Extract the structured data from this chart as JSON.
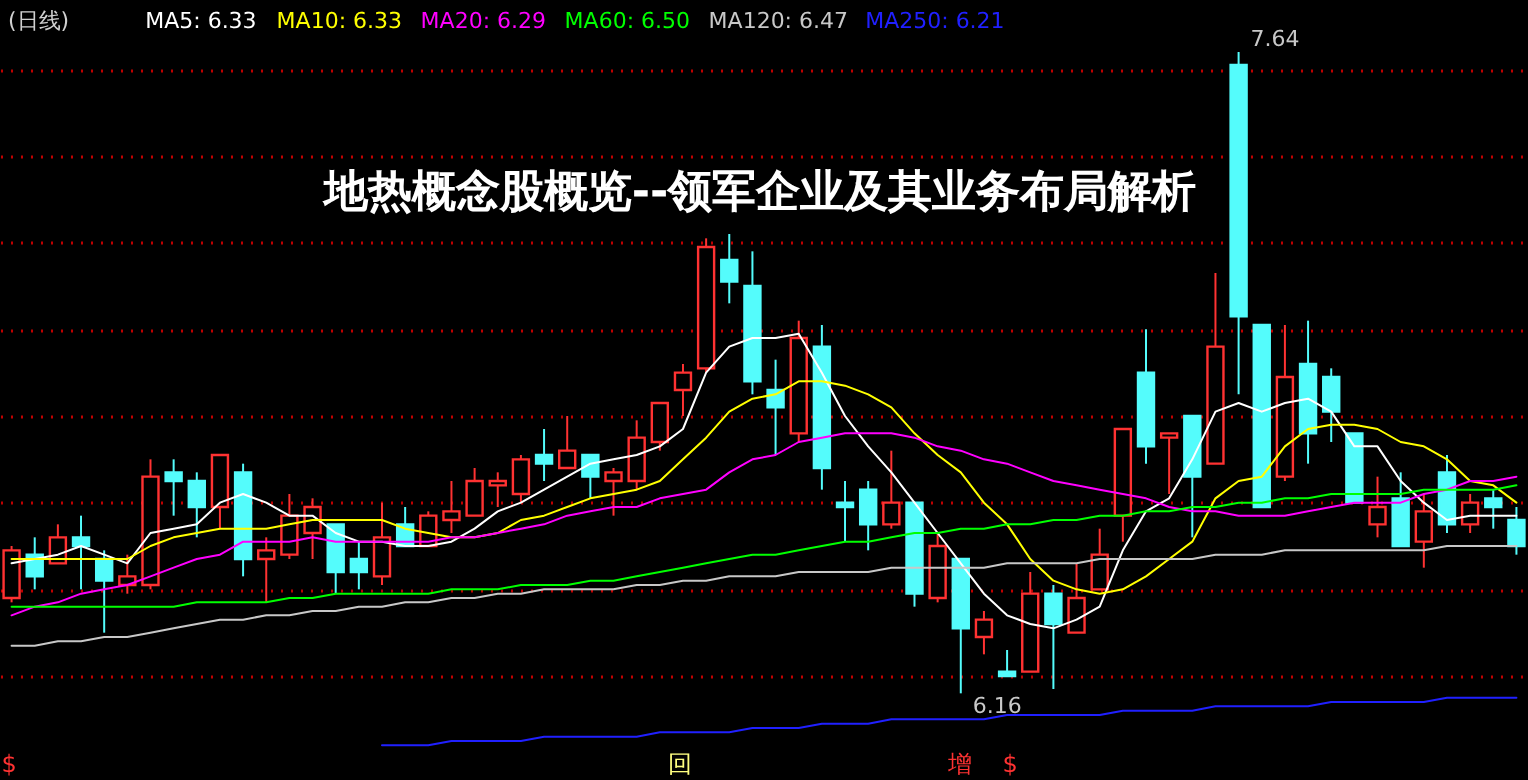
{
  "chart_data": {
    "type": "candlestick",
    "title": "地热概念股概览--领军企业及其业务布局解析",
    "subtitle": "(日线)",
    "categories": [
      null,
      null,
      null,
      null,
      null,
      null,
      null,
      null,
      null,
      null,
      null,
      null,
      null,
      null,
      null,
      null,
      null,
      null,
      null,
      null,
      null,
      null,
      null,
      null,
      null,
      null,
      null,
      null,
      null,
      null,
      null,
      null,
      null,
      null,
      null,
      null,
      null,
      null,
      null,
      null,
      null,
      null,
      null,
      null,
      null,
      null,
      null,
      null,
      null,
      null,
      null,
      null,
      null,
      null,
      null,
      null,
      null,
      null,
      null,
      null,
      null,
      null,
      null,
      null,
      null,
      null
    ],
    "ohlc": [
      [
        6.38,
        6.5,
        6.37,
        6.49
      ],
      [
        6.48,
        6.52,
        6.4,
        6.43
      ],
      [
        6.46,
        6.55,
        6.46,
        6.52
      ],
      [
        6.52,
        6.57,
        6.4,
        6.5
      ],
      [
        6.47,
        6.49,
        6.3,
        6.42
      ],
      [
        6.41,
        6.48,
        6.39,
        6.43
      ],
      [
        6.41,
        6.7,
        6.4,
        6.66
      ],
      [
        6.67,
        6.7,
        6.57,
        6.65
      ],
      [
        6.65,
        6.67,
        6.52,
        6.59
      ],
      [
        6.59,
        6.71,
        6.54,
        6.71
      ],
      [
        6.67,
        6.69,
        6.43,
        6.47
      ],
      [
        6.47,
        6.52,
        6.37,
        6.49
      ],
      [
        6.48,
        6.62,
        6.47,
        6.57
      ],
      [
        6.53,
        6.61,
        6.47,
        6.59
      ],
      [
        6.55,
        6.55,
        6.39,
        6.44
      ],
      [
        6.47,
        6.51,
        6.4,
        6.44
      ],
      [
        6.43,
        6.6,
        6.41,
        6.52
      ],
      [
        6.55,
        6.59,
        6.5,
        6.5
      ],
      [
        6.5,
        6.58,
        6.5,
        6.57
      ],
      [
        6.56,
        6.65,
        6.53,
        6.58
      ],
      [
        6.57,
        6.68,
        6.57,
        6.65
      ],
      [
        6.64,
        6.67,
        6.59,
        6.65
      ],
      [
        6.62,
        6.71,
        6.6,
        6.7
      ],
      [
        6.71,
        6.77,
        6.65,
        6.69
      ],
      [
        6.68,
        6.8,
        6.68,
        6.72
      ],
      [
        6.71,
        6.71,
        6.61,
        6.66
      ],
      [
        6.65,
        6.68,
        6.57,
        6.67
      ],
      [
        6.65,
        6.79,
        6.63,
        6.75
      ],
      [
        6.74,
        6.83,
        6.72,
        6.83
      ],
      [
        6.86,
        6.92,
        6.8,
        6.9
      ],
      [
        6.91,
        7.21,
        6.9,
        7.19
      ],
      [
        7.16,
        7.22,
        7.06,
        7.11
      ],
      [
        7.1,
        7.18,
        6.85,
        6.88
      ],
      [
        6.86,
        6.93,
        6.71,
        6.82
      ],
      [
        6.76,
        7.02,
        6.74,
        6.98
      ],
      [
        6.96,
        7.01,
        6.63,
        6.68
      ],
      [
        6.6,
        6.65,
        6.51,
        6.59
      ],
      [
        6.63,
        6.65,
        6.49,
        6.55
      ],
      [
        6.55,
        6.72,
        6.54,
        6.6
      ],
      [
        6.6,
        6.6,
        6.36,
        6.39
      ],
      [
        6.38,
        6.53,
        6.37,
        6.5
      ],
      [
        6.47,
        6.47,
        6.16,
        6.31
      ],
      [
        6.29,
        6.35,
        6.25,
        6.33
      ],
      [
        6.21,
        6.26,
        6.2,
        6.2
      ],
      [
        6.21,
        6.44,
        6.21,
        6.39
      ],
      [
        6.39,
        6.41,
        6.17,
        6.32
      ],
      [
        6.3,
        6.46,
        6.3,
        6.38
      ],
      [
        6.4,
        6.54,
        6.4,
        6.48
      ],
      [
        6.57,
        6.77,
        6.51,
        6.77
      ],
      [
        6.9,
        7.0,
        6.69,
        6.73
      ],
      [
        6.75,
        6.76,
        6.62,
        6.76
      ],
      [
        6.8,
        6.8,
        6.52,
        6.66
      ],
      [
        6.69,
        7.13,
        6.69,
        6.96
      ],
      [
        7.61,
        7.64,
        6.85,
        7.03
      ],
      [
        7.01,
        7.01,
        6.59,
        6.59
      ],
      [
        6.66,
        7.01,
        6.65,
        6.89
      ],
      [
        6.92,
        7.02,
        6.69,
        6.76
      ],
      [
        6.89,
        6.91,
        6.74,
        6.81
      ],
      [
        6.76,
        6.76,
        6.6,
        6.6
      ],
      [
        6.55,
        6.66,
        6.52,
        6.59
      ],
      [
        6.61,
        6.67,
        6.5,
        6.5
      ],
      [
        6.51,
        6.62,
        6.45,
        6.58
      ],
      [
        6.67,
        6.71,
        6.53,
        6.55
      ],
      [
        6.55,
        6.62,
        6.53,
        6.6
      ],
      [
        6.61,
        6.63,
        6.54,
        6.59
      ],
      [
        6.56,
        6.59,
        6.48,
        6.5
      ]
    ],
    "colors": [
      "#ff3232",
      "#54fcfc",
      "#ff3232",
      "#54fcfc",
      "#54fcfc",
      "#ff3232",
      "#ff3232",
      "#54fcfc",
      "#54fcfc",
      "#ff3232",
      "#54fcfc",
      "#ff3232",
      "#ff3232",
      "#ff3232",
      "#54fcfc",
      "#54fcfc",
      "#ff3232",
      "#54fcfc",
      "#ff3232",
      "#ff3232",
      "#ff3232",
      "#ff3232",
      "#ff3232",
      "#54fcfc",
      "#ff3232",
      "#54fcfc",
      "#ff3232",
      "#ff3232",
      "#ff3232",
      "#ff3232",
      "#ff3232",
      "#54fcfc",
      "#54fcfc",
      "#54fcfc",
      "#ff3232",
      "#54fcfc",
      "#54fcfc",
      "#54fcfc",
      "#ff3232",
      "#54fcfc",
      "#ff3232",
      "#54fcfc",
      "#ff3232",
      "#54fcfc",
      "#ff3232",
      "#54fcfc",
      "#ff3232",
      "#ff3232",
      "#ff3232",
      "#54fcfc",
      "#ff3232",
      "#54fcfc",
      "#ff3232",
      "#54fcfc",
      "#54fcfc",
      "#ff3232",
      "#54fcfc",
      "#54fcfc",
      "#54fcfc",
      "#ff3232",
      "#54fcfc",
      "#ff3232",
      "#54fcfc",
      "#ff3232",
      "#54fcfc",
      "#54fcfc"
    ],
    "series": [
      {
        "name": "MA5: 6.33",
        "type": "line",
        "color": "#ffffff",
        "values": [
          6.46,
          6.47,
          6.48,
          6.5,
          6.48,
          6.46,
          6.53,
          6.54,
          6.55,
          6.6,
          6.62,
          6.6,
          6.57,
          6.57,
          6.53,
          6.51,
          6.51,
          6.5,
          6.5,
          6.51,
          6.54,
          6.58,
          6.6,
          6.63,
          6.66,
          6.69,
          6.7,
          6.71,
          6.73,
          6.77,
          6.9,
          6.96,
          6.98,
          6.98,
          6.99,
          6.9,
          6.8,
          6.73,
          6.67,
          6.6,
          6.53,
          6.46,
          6.39,
          6.34,
          6.32,
          6.31,
          6.33,
          6.36,
          6.49,
          6.58,
          6.61,
          6.7,
          6.81,
          6.83,
          6.81,
          6.83,
          6.84,
          6.81,
          6.73,
          6.73,
          6.65,
          6.6,
          6.56,
          6.57,
          6.57,
          6.57
        ]
      },
      {
        "name": "MA10: 6.33",
        "type": "line",
        "color": "#ffff00",
        "values": [
          6.47,
          6.47,
          6.47,
          6.47,
          6.47,
          6.47,
          6.5,
          6.52,
          6.53,
          6.54,
          6.54,
          6.54,
          6.55,
          6.56,
          6.56,
          6.56,
          6.56,
          6.54,
          6.53,
          6.52,
          6.52,
          6.53,
          6.56,
          6.57,
          6.59,
          6.61,
          6.62,
          6.63,
          6.65,
          6.7,
          6.75,
          6.81,
          6.84,
          6.85,
          6.88,
          6.88,
          6.87,
          6.85,
          6.82,
          6.76,
          6.71,
          6.67,
          6.6,
          6.55,
          6.47,
          6.42,
          6.4,
          6.39,
          6.4,
          6.43,
          6.47,
          6.51,
          6.61,
          6.65,
          6.66,
          6.73,
          6.77,
          6.78,
          6.78,
          6.77,
          6.74,
          6.73,
          6.7,
          6.65,
          6.64,
          6.6
        ]
      },
      {
        "name": "MA20: 6.29",
        "type": "line",
        "color": "#ff00ff",
        "values": [
          6.34,
          6.36,
          6.37,
          6.39,
          6.4,
          6.41,
          6.43,
          6.45,
          6.47,
          6.48,
          6.51,
          6.51,
          6.51,
          6.52,
          6.51,
          6.51,
          6.51,
          6.51,
          6.51,
          6.52,
          6.52,
          6.53,
          6.54,
          6.55,
          6.57,
          6.58,
          6.59,
          6.59,
          6.61,
          6.62,
          6.63,
          6.67,
          6.7,
          6.71,
          6.74,
          6.75,
          6.76,
          6.76,
          6.76,
          6.75,
          6.73,
          6.72,
          6.7,
          6.69,
          6.67,
          6.65,
          6.64,
          6.63,
          6.62,
          6.61,
          6.59,
          6.58,
          6.58,
          6.57,
          6.57,
          6.57,
          6.58,
          6.59,
          6.6,
          6.6,
          6.6,
          6.62,
          6.63,
          6.65,
          6.65,
          6.66
        ]
      },
      {
        "name": "MA60: 6.50",
        "type": "line",
        "color": "#00ff00",
        "values": [
          6.36,
          6.36,
          6.36,
          6.36,
          6.36,
          6.36,
          6.36,
          6.36,
          6.37,
          6.37,
          6.37,
          6.37,
          6.38,
          6.38,
          6.39,
          6.39,
          6.39,
          6.39,
          6.39,
          6.4,
          6.4,
          6.4,
          6.41,
          6.41,
          6.41,
          6.42,
          6.42,
          6.43,
          6.44,
          6.45,
          6.46,
          6.47,
          6.48,
          6.48,
          6.49,
          6.5,
          6.51,
          6.51,
          6.52,
          6.53,
          6.53,
          6.54,
          6.54,
          6.55,
          6.55,
          6.56,
          6.56,
          6.57,
          6.57,
          6.58,
          6.58,
          6.59,
          6.59,
          6.6,
          6.6,
          6.61,
          6.61,
          6.62,
          6.62,
          6.62,
          6.62,
          6.63,
          6.63,
          6.63,
          6.63,
          6.64
        ]
      },
      {
        "name": "MA120: 6.47",
        "type": "line",
        "color": "#c8c8c8",
        "values": [
          6.27,
          6.27,
          6.28,
          6.28,
          6.29,
          6.29,
          6.3,
          6.31,
          6.32,
          6.33,
          6.33,
          6.34,
          6.34,
          6.35,
          6.35,
          6.36,
          6.36,
          6.37,
          6.37,
          6.38,
          6.38,
          6.39,
          6.39,
          6.4,
          6.4,
          6.4,
          6.4,
          6.41,
          6.41,
          6.42,
          6.42,
          6.43,
          6.43,
          6.43,
          6.44,
          6.44,
          6.44,
          6.44,
          6.45,
          6.45,
          6.45,
          6.45,
          6.45,
          6.46,
          6.46,
          6.46,
          6.46,
          6.47,
          6.47,
          6.47,
          6.47,
          6.47,
          6.48,
          6.48,
          6.48,
          6.49,
          6.49,
          6.49,
          6.49,
          6.49,
          6.49,
          6.49,
          6.5,
          6.5,
          6.5,
          6.5
        ]
      },
      {
        "name": "MA250: 6.21",
        "type": "line",
        "color": "#2020ff",
        "values": [
          null,
          null,
          null,
          null,
          null,
          null,
          null,
          null,
          null,
          null,
          null,
          null,
          null,
          null,
          null,
          null,
          6.04,
          6.04,
          6.04,
          6.05,
          6.05,
          6.05,
          6.05,
          6.06,
          6.06,
          6.06,
          6.06,
          6.06,
          6.07,
          6.07,
          6.07,
          6.07,
          6.08,
          6.08,
          6.08,
          6.09,
          6.09,
          6.09,
          6.1,
          6.1,
          6.1,
          6.1,
          6.1,
          6.11,
          6.11,
          6.11,
          6.11,
          6.11,
          6.12,
          6.12,
          6.12,
          6.12,
          6.13,
          6.13,
          6.13,
          6.13,
          6.13,
          6.14,
          6.14,
          6.14,
          6.14,
          6.14,
          6.15,
          6.15,
          6.15,
          6.15
        ]
      }
    ],
    "ylim": [
      5.96,
      7.76
    ],
    "yticks": [
      {
        "value": 6.2,
        "label": null
      },
      {
        "value": 6.4,
        "label": null
      },
      {
        "value": 6.6,
        "label": null
      },
      {
        "value": 6.8,
        "label": null
      },
      {
        "value": 7.0,
        "label": null
      },
      {
        "value": 7.2,
        "label": null
      },
      {
        "value": 7.4,
        "label": null
      },
      {
        "value": 7.6,
        "label": null
      }
    ],
    "grid": "y",
    "legend": "top left",
    "annotations": [
      "7.64",
      "6.16",
      "$",
      "回",
      "增",
      "$"
    ]
  }
}
